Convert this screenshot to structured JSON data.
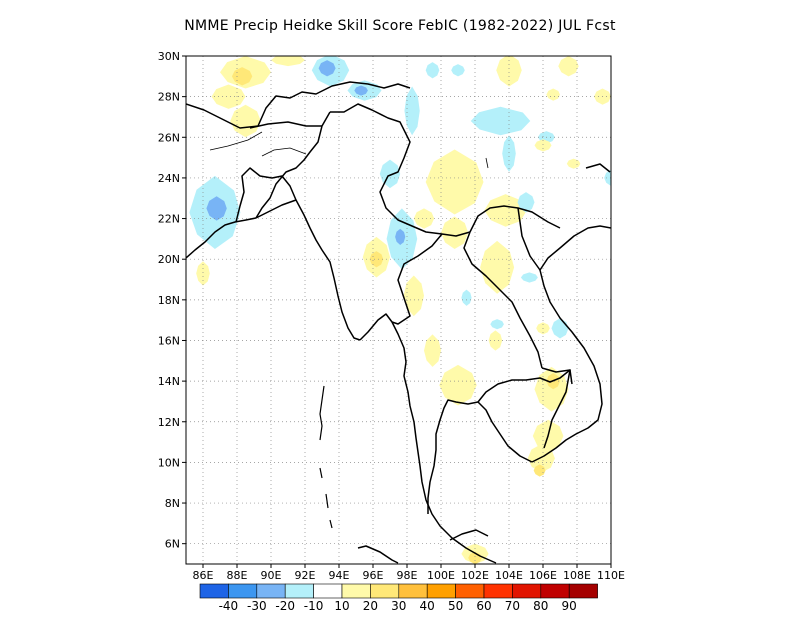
{
  "title": "NMME Precip Heidke Skill Score FebIC (1982-2022) JUL Fcst",
  "map": {
    "lon_range": [
      85,
      110
    ],
    "lat_range": [
      5,
      30
    ],
    "lon_ticks": [
      "86E",
      "88E",
      "90E",
      "92E",
      "94E",
      "96E",
      "98E",
      "100E",
      "102E",
      "104E",
      "106E",
      "108E",
      "110E"
    ],
    "lat_ticks": [
      "6N",
      "8N",
      "10N",
      "12N",
      "14N",
      "16N",
      "18N",
      "20N",
      "22N",
      "24N",
      "26N",
      "28N",
      "30N"
    ],
    "grid": "dotted",
    "land_outline_color": "#000000"
  },
  "colorbar": {
    "colors": [
      "#1e64e6",
      "#3c96f0",
      "#78b4f5",
      "#b4f0fa",
      "#ffffff",
      "#fffaaa",
      "#ffe878",
      "#ffc03c",
      "#ffa000",
      "#ff6000",
      "#ff3200",
      "#e11400",
      "#c00000",
      "#a50000"
    ],
    "labels": [
      "-40",
      "-30",
      "-20",
      "-10",
      "10",
      "20",
      "30",
      "40",
      "50",
      "60",
      "70",
      "80",
      "90"
    ]
  },
  "skill_patches": [
    {
      "lon": 88.5,
      "lat": 29.2,
      "w": 3.0,
      "h": 1.6,
      "color": "#fffaaa"
    },
    {
      "lon": 88.3,
      "lat": 29.0,
      "w": 1.2,
      "h": 0.9,
      "color": "#ffe878"
    },
    {
      "lon": 91.0,
      "lat": 29.8,
      "w": 2.0,
      "h": 0.6,
      "color": "#fffaaa"
    },
    {
      "lon": 87.5,
      "lat": 28.0,
      "w": 2.0,
      "h": 1.2,
      "color": "#fffaaa"
    },
    {
      "lon": 88.5,
      "lat": 26.8,
      "w": 1.8,
      "h": 1.6,
      "color": "#fffaaa"
    },
    {
      "lon": 93.5,
      "lat": 29.3,
      "w": 2.2,
      "h": 1.6,
      "color": "#b4f0fa"
    },
    {
      "lon": 93.3,
      "lat": 29.4,
      "w": 1.0,
      "h": 0.8,
      "color": "#78b4f5"
    },
    {
      "lon": 95.5,
      "lat": 28.3,
      "w": 2.0,
      "h": 1.0,
      "color": "#b4f0fa"
    },
    {
      "lon": 95.3,
      "lat": 28.3,
      "w": 0.8,
      "h": 0.5,
      "color": "#78b4f5"
    },
    {
      "lon": 98.3,
      "lat": 27.3,
      "w": 0.9,
      "h": 2.4,
      "color": "#b4f0fa"
    },
    {
      "lon": 99.5,
      "lat": 29.3,
      "w": 0.8,
      "h": 0.8,
      "color": "#b4f0fa"
    },
    {
      "lon": 101.0,
      "lat": 29.3,
      "w": 0.8,
      "h": 0.6,
      "color": "#b4f0fa"
    },
    {
      "lon": 104.0,
      "lat": 29.3,
      "w": 1.5,
      "h": 1.6,
      "color": "#fffaaa"
    },
    {
      "lon": 107.5,
      "lat": 29.5,
      "w": 1.2,
      "h": 1.0,
      "color": "#fffaaa"
    },
    {
      "lon": 109.5,
      "lat": 28.0,
      "w": 1.0,
      "h": 0.8,
      "color": "#fffaaa"
    },
    {
      "lon": 106.6,
      "lat": 28.1,
      "w": 0.8,
      "h": 0.6,
      "color": "#fffaaa"
    },
    {
      "lon": 103.5,
      "lat": 26.8,
      "w": 3.5,
      "h": 1.4,
      "color": "#b4f0fa"
    },
    {
      "lon": 104.0,
      "lat": 25.2,
      "w": 0.8,
      "h": 1.8,
      "color": "#b4f0fa"
    },
    {
      "lon": 106.2,
      "lat": 26.0,
      "w": 1.0,
      "h": 0.6,
      "color": "#b4f0fa"
    },
    {
      "lon": 106.0,
      "lat": 25.6,
      "w": 1.0,
      "h": 0.6,
      "color": "#fffaaa"
    },
    {
      "lon": 107.8,
      "lat": 24.7,
      "w": 0.8,
      "h": 0.5,
      "color": "#fffaaa"
    },
    {
      "lon": 110.0,
      "lat": 24.0,
      "w": 0.8,
      "h": 0.8,
      "color": "#b4f0fa"
    },
    {
      "lon": 100.8,
      "lat": 23.8,
      "w": 3.4,
      "h": 3.2,
      "color": "#fffaaa"
    },
    {
      "lon": 103.8,
      "lat": 22.4,
      "w": 2.5,
      "h": 1.6,
      "color": "#fffaaa"
    },
    {
      "lon": 105.0,
      "lat": 22.8,
      "w": 1.0,
      "h": 1.0,
      "color": "#b4f0fa"
    },
    {
      "lon": 97.0,
      "lat": 24.2,
      "w": 1.2,
      "h": 1.4,
      "color": "#b4f0fa"
    },
    {
      "lon": 86.7,
      "lat": 22.3,
      "w": 3.0,
      "h": 3.6,
      "color": "#b4f0fa"
    },
    {
      "lon": 86.8,
      "lat": 22.5,
      "w": 1.2,
      "h": 1.2,
      "color": "#78b4f5"
    },
    {
      "lon": 86.0,
      "lat": 19.3,
      "w": 0.8,
      "h": 1.2,
      "color": "#fffaaa"
    },
    {
      "lon": 97.7,
      "lat": 21.0,
      "w": 1.8,
      "h": 3.0,
      "color": "#b4f0fa"
    },
    {
      "lon": 97.6,
      "lat": 21.1,
      "w": 0.6,
      "h": 0.8,
      "color": "#78b4f5"
    },
    {
      "lon": 99.0,
      "lat": 22.0,
      "w": 1.2,
      "h": 1.0,
      "color": "#fffaaa"
    },
    {
      "lon": 96.2,
      "lat": 20.1,
      "w": 1.6,
      "h": 2.0,
      "color": "#fffaaa"
    },
    {
      "lon": 96.2,
      "lat": 20.0,
      "w": 0.8,
      "h": 0.8,
      "color": "#ffe878"
    },
    {
      "lon": 100.8,
      "lat": 21.3,
      "w": 1.6,
      "h": 1.6,
      "color": "#fffaaa"
    },
    {
      "lon": 103.3,
      "lat": 19.6,
      "w": 2.0,
      "h": 2.6,
      "color": "#fffaaa"
    },
    {
      "lon": 98.4,
      "lat": 18.2,
      "w": 1.2,
      "h": 2.0,
      "color": "#fffaaa"
    },
    {
      "lon": 99.5,
      "lat": 15.5,
      "w": 1.0,
      "h": 1.6,
      "color": "#fffaaa"
    },
    {
      "lon": 105.2,
      "lat": 19.1,
      "w": 1.0,
      "h": 0.5,
      "color": "#b4f0fa"
    },
    {
      "lon": 101.5,
      "lat": 18.1,
      "w": 0.6,
      "h": 0.8,
      "color": "#b4f0fa"
    },
    {
      "lon": 103.3,
      "lat": 16.8,
      "w": 0.8,
      "h": 0.5,
      "color": "#b4f0fa"
    },
    {
      "lon": 103.2,
      "lat": 16.0,
      "w": 0.8,
      "h": 1.0,
      "color": "#fffaaa"
    },
    {
      "lon": 106.0,
      "lat": 16.6,
      "w": 0.8,
      "h": 0.6,
      "color": "#fffaaa"
    },
    {
      "lon": 107.0,
      "lat": 16.6,
      "w": 1.0,
      "h": 1.0,
      "color": "#b4f0fa"
    },
    {
      "lon": 101.0,
      "lat": 13.8,
      "w": 2.2,
      "h": 2.0,
      "color": "#fffaaa"
    },
    {
      "lon": 106.5,
      "lat": 13.6,
      "w": 2.0,
      "h": 2.2,
      "color": "#fffaaa"
    },
    {
      "lon": 106.6,
      "lat": 14.0,
      "w": 0.8,
      "h": 0.8,
      "color": "#ffe878"
    },
    {
      "lon": 106.3,
      "lat": 11.3,
      "w": 1.8,
      "h": 1.6,
      "color": "#fffaaa"
    },
    {
      "lon": 105.9,
      "lat": 10.2,
      "w": 1.6,
      "h": 1.4,
      "color": "#fffaaa"
    },
    {
      "lon": 105.8,
      "lat": 9.6,
      "w": 0.7,
      "h": 0.6,
      "color": "#ffe878"
    },
    {
      "lon": 102.0,
      "lat": 5.5,
      "w": 1.6,
      "h": 1.0,
      "color": "#fffaaa"
    },
    {
      "lon": 102.0,
      "lat": 5.3,
      "w": 0.8,
      "h": 0.6,
      "color": "#ffe878"
    }
  ]
}
